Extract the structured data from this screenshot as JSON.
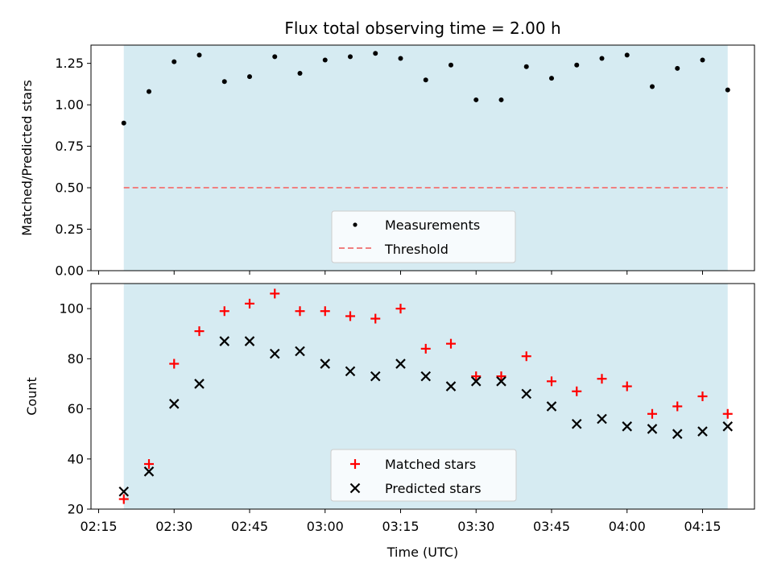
{
  "title": "Flux total observing time = 2.00 h",
  "colors": {
    "shade": "#add8e6",
    "measurement": "#000000",
    "threshold": "#f08080",
    "matched": "#ff0000",
    "predicted": "#000000"
  },
  "chart_data": [
    {
      "type": "scatter",
      "title": "Flux total observing time = 2.00 h",
      "xlabel": "",
      "ylabel": "Matched/Predicted stars",
      "ylim": [
        0.0,
        1.36
      ],
      "yticks": [
        "0.00",
        "0.25",
        "0.50",
        "0.75",
        "1.00",
        "1.25"
      ],
      "ytick_values": [
        0.0,
        0.25,
        0.5,
        0.75,
        1.0,
        1.25
      ],
      "xlim": [
        "02:15",
        "04:25"
      ],
      "shaded_range": [
        "02:20",
        "04:20"
      ],
      "threshold": 0.5,
      "legend_placement": "lower center",
      "legend": [
        "Measurements",
        "Threshold"
      ],
      "series": [
        {
          "name": "Measurements",
          "marker": "dot",
          "x": [
            "02:20",
            "02:25",
            "02:30",
            "02:35",
            "02:40",
            "02:45",
            "02:50",
            "02:55",
            "03:00",
            "03:05",
            "03:10",
            "03:15",
            "03:20",
            "03:25",
            "03:30",
            "03:35",
            "03:40",
            "03:45",
            "03:50",
            "03:55",
            "04:00",
            "04:05",
            "04:10",
            "04:15",
            "04:20"
          ],
          "values": [
            0.89,
            1.08,
            1.26,
            1.3,
            1.14,
            1.17,
            1.29,
            1.19,
            1.27,
            1.29,
            1.31,
            1.28,
            1.15,
            1.24,
            1.03,
            1.03,
            1.23,
            1.16,
            1.24,
            1.28,
            1.3,
            1.11,
            1.22,
            1.27,
            1.09
          ]
        }
      ]
    },
    {
      "type": "scatter",
      "title": "",
      "xlabel": "Time (UTC)",
      "ylabel": "Count",
      "ylim": [
        20,
        110
      ],
      "yticks": [
        "20",
        "40",
        "60",
        "80",
        "100"
      ],
      "ytick_values": [
        20,
        40,
        60,
        80,
        100
      ],
      "xlim": [
        "02:15",
        "04:25"
      ],
      "xticks": [
        "02:15",
        "02:30",
        "02:45",
        "03:00",
        "03:15",
        "03:30",
        "03:45",
        "04:00",
        "04:15"
      ],
      "shaded_range": [
        "02:20",
        "04:20"
      ],
      "legend_placement": "lower center",
      "legend": [
        "Matched stars",
        "Predicted stars"
      ],
      "x": [
        "02:20",
        "02:25",
        "02:30",
        "02:35",
        "02:40",
        "02:45",
        "02:50",
        "02:55",
        "03:00",
        "03:05",
        "03:10",
        "03:15",
        "03:20",
        "03:25",
        "03:30",
        "03:35",
        "03:40",
        "03:45",
        "03:50",
        "03:55",
        "04:00",
        "04:05",
        "04:10",
        "04:15",
        "04:20"
      ],
      "series": [
        {
          "name": "Matched stars",
          "marker": "plus",
          "values": [
            24,
            38,
            78,
            91,
            99,
            102,
            106,
            99,
            99,
            97,
            96,
            100,
            84,
            86,
            73,
            73,
            81,
            71,
            67,
            72,
            69,
            58,
            61,
            65,
            58
          ]
        },
        {
          "name": "Predicted stars",
          "marker": "x",
          "values": [
            27,
            35,
            62,
            70,
            87,
            87,
            82,
            83,
            78,
            75,
            73,
            78,
            73,
            69,
            71,
            71,
            66,
            61,
            54,
            56,
            53,
            52,
            50,
            51,
            53
          ]
        }
      ]
    }
  ]
}
